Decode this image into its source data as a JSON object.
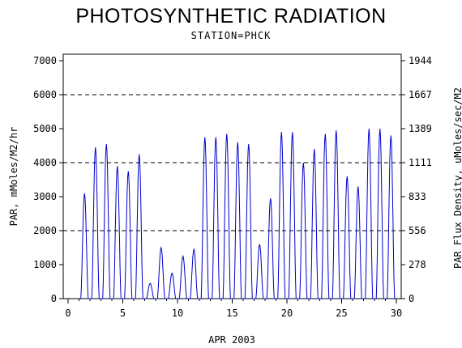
{
  "chart_data": {
    "type": "line",
    "title": "PHOTOSYNTHETIC RADIATION",
    "subtitle": "STATION=PHCK",
    "xlabel": "APR 2003",
    "ylabel": "PAR, mMoles/M2/hr",
    "y2label": "PAR Flux Density, uMoles/sec/M2",
    "xlim": [
      0,
      30
    ],
    "ylim": [
      0,
      7000
    ],
    "xticks": [
      0,
      5,
      10,
      15,
      20,
      25,
      30
    ],
    "yticks": [
      0,
      1000,
      2000,
      3000,
      4000,
      5000,
      6000,
      7000
    ],
    "y2ticks": [
      "0",
      "278",
      "556",
      "833",
      "1111",
      "1389",
      "1667",
      "1944"
    ],
    "reference_lines": [
      2000,
      4000,
      6000
    ],
    "series": [
      {
        "color": "#0000cc",
        "daily_peaks": [
          {
            "day": 1.5,
            "value": 3100
          },
          {
            "day": 2.5,
            "value": 4450
          },
          {
            "day": 3.5,
            "value": 4550
          },
          {
            "day": 4.5,
            "value": 3900
          },
          {
            "day": 5.5,
            "value": 3750
          },
          {
            "day": 6.5,
            "value": 4250
          },
          {
            "day": 7.5,
            "value": 450
          },
          {
            "day": 8.5,
            "value": 1500
          },
          {
            "day": 9.5,
            "value": 750
          },
          {
            "day": 10.5,
            "value": 1250
          },
          {
            "day": 11.5,
            "value": 1450
          },
          {
            "day": 12.5,
            "value": 4750
          },
          {
            "day": 13.5,
            "value": 4750
          },
          {
            "day": 14.5,
            "value": 4850
          },
          {
            "day": 15.5,
            "value": 4600
          },
          {
            "day": 16.5,
            "value": 4550
          },
          {
            "day": 17.5,
            "value": 1600
          },
          {
            "day": 18.5,
            "value": 2950
          },
          {
            "day": 19.5,
            "value": 4900
          },
          {
            "day": 20.5,
            "value": 4900
          },
          {
            "day": 21.5,
            "value": 4000
          },
          {
            "day": 22.5,
            "value": 4400
          },
          {
            "day": 23.5,
            "value": 4850
          },
          {
            "day": 24.5,
            "value": 4950
          },
          {
            "day": 25.5,
            "value": 3600
          },
          {
            "day": 26.5,
            "value": 3300
          },
          {
            "day": 27.5,
            "value": 5000
          },
          {
            "day": 28.5,
            "value": 5000
          },
          {
            "day": 29.5,
            "value": 4800
          }
        ]
      }
    ]
  }
}
